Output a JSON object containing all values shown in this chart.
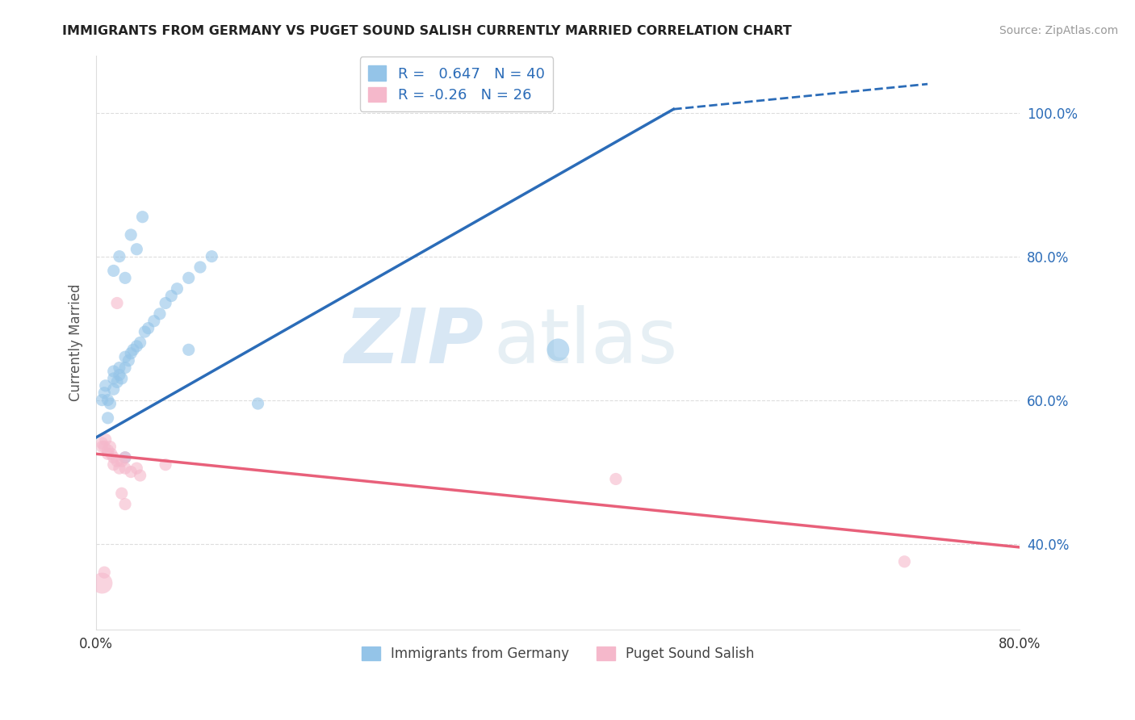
{
  "title": "IMMIGRANTS FROM GERMANY VS PUGET SOUND SALISH CURRENTLY MARRIED CORRELATION CHART",
  "source": "Source: ZipAtlas.com",
  "ylabel": "Currently Married",
  "blue_R": 0.647,
  "blue_N": 40,
  "pink_R": -0.26,
  "pink_N": 26,
  "blue_color": "#94C4E8",
  "pink_color": "#F5B8CB",
  "blue_line_color": "#2B6CB8",
  "pink_line_color": "#E8607A",
  "legend_label_blue": "Immigrants from Germany",
  "legend_label_pink": "Puget Sound Salish",
  "watermark_zip": "ZIP",
  "watermark_atlas": "atlas",
  "blue_scatter": [
    [
      0.005,
      0.6
    ],
    [
      0.007,
      0.61
    ],
    [
      0.008,
      0.62
    ],
    [
      0.01,
      0.575
    ],
    [
      0.01,
      0.6
    ],
    [
      0.012,
      0.595
    ],
    [
      0.015,
      0.615
    ],
    [
      0.015,
      0.63
    ],
    [
      0.015,
      0.64
    ],
    [
      0.018,
      0.625
    ],
    [
      0.02,
      0.635
    ],
    [
      0.02,
      0.645
    ],
    [
      0.022,
      0.63
    ],
    [
      0.025,
      0.645
    ],
    [
      0.025,
      0.66
    ],
    [
      0.028,
      0.655
    ],
    [
      0.03,
      0.665
    ],
    [
      0.032,
      0.67
    ],
    [
      0.035,
      0.675
    ],
    [
      0.038,
      0.68
    ],
    [
      0.042,
      0.695
    ],
    [
      0.045,
      0.7
    ],
    [
      0.05,
      0.71
    ],
    [
      0.055,
      0.72
    ],
    [
      0.06,
      0.735
    ],
    [
      0.065,
      0.745
    ],
    [
      0.07,
      0.755
    ],
    [
      0.08,
      0.77
    ],
    [
      0.09,
      0.785
    ],
    [
      0.1,
      0.8
    ],
    [
      0.03,
      0.83
    ],
    [
      0.04,
      0.855
    ],
    [
      0.015,
      0.78
    ],
    [
      0.02,
      0.8
    ],
    [
      0.025,
      0.77
    ],
    [
      0.035,
      0.81
    ],
    [
      0.08,
      0.67
    ],
    [
      0.025,
      0.52
    ],
    [
      0.4,
      0.67
    ],
    [
      0.14,
      0.595
    ]
  ],
  "blue_scatter_sizes": [
    120,
    120,
    120,
    120,
    120,
    120,
    120,
    120,
    120,
    120,
    120,
    120,
    120,
    120,
    120,
    120,
    120,
    120,
    120,
    120,
    120,
    120,
    120,
    120,
    120,
    120,
    120,
    120,
    120,
    120,
    120,
    120,
    120,
    120,
    120,
    120,
    120,
    120,
    400,
    120
  ],
  "pink_scatter": [
    [
      0.005,
      0.54
    ],
    [
      0.005,
      0.535
    ],
    [
      0.007,
      0.535
    ],
    [
      0.008,
      0.545
    ],
    [
      0.01,
      0.53
    ],
    [
      0.01,
      0.525
    ],
    [
      0.012,
      0.535
    ],
    [
      0.013,
      0.525
    ],
    [
      0.015,
      0.52
    ],
    [
      0.015,
      0.51
    ],
    [
      0.018,
      0.515
    ],
    [
      0.02,
      0.505
    ],
    [
      0.022,
      0.515
    ],
    [
      0.025,
      0.52
    ],
    [
      0.025,
      0.505
    ],
    [
      0.03,
      0.5
    ],
    [
      0.035,
      0.505
    ],
    [
      0.038,
      0.495
    ],
    [
      0.018,
      0.735
    ],
    [
      0.06,
      0.51
    ],
    [
      0.005,
      0.345
    ],
    [
      0.007,
      0.36
    ],
    [
      0.022,
      0.47
    ],
    [
      0.025,
      0.455
    ],
    [
      0.45,
      0.49
    ],
    [
      0.7,
      0.375
    ]
  ],
  "pink_scatter_sizes": [
    120,
    120,
    120,
    120,
    120,
    120,
    120,
    120,
    120,
    120,
    120,
    120,
    120,
    120,
    120,
    120,
    120,
    120,
    120,
    120,
    350,
    120,
    120,
    120,
    120,
    120
  ],
  "blue_line": [
    [
      0.0,
      0.548
    ],
    [
      0.5,
      1.005
    ]
  ],
  "blue_line_dashed": [
    [
      0.5,
      1.005
    ],
    [
      0.72,
      1.04
    ]
  ],
  "pink_line": [
    [
      0.0,
      0.525
    ],
    [
      0.8,
      0.395
    ]
  ],
  "xlim": [
    0.0,
    0.8
  ],
  "ylim": [
    0.28,
    1.08
  ],
  "yticks": [
    0.4,
    0.6,
    0.8,
    1.0
  ],
  "ytick_labels": [
    "40.0%",
    "60.0%",
    "80.0%",
    "100.0%"
  ],
  "xtick_left": "0.0%",
  "xtick_right": "80.0%",
  "background_color": "#FFFFFF",
  "grid_color": "#DDDDDD"
}
